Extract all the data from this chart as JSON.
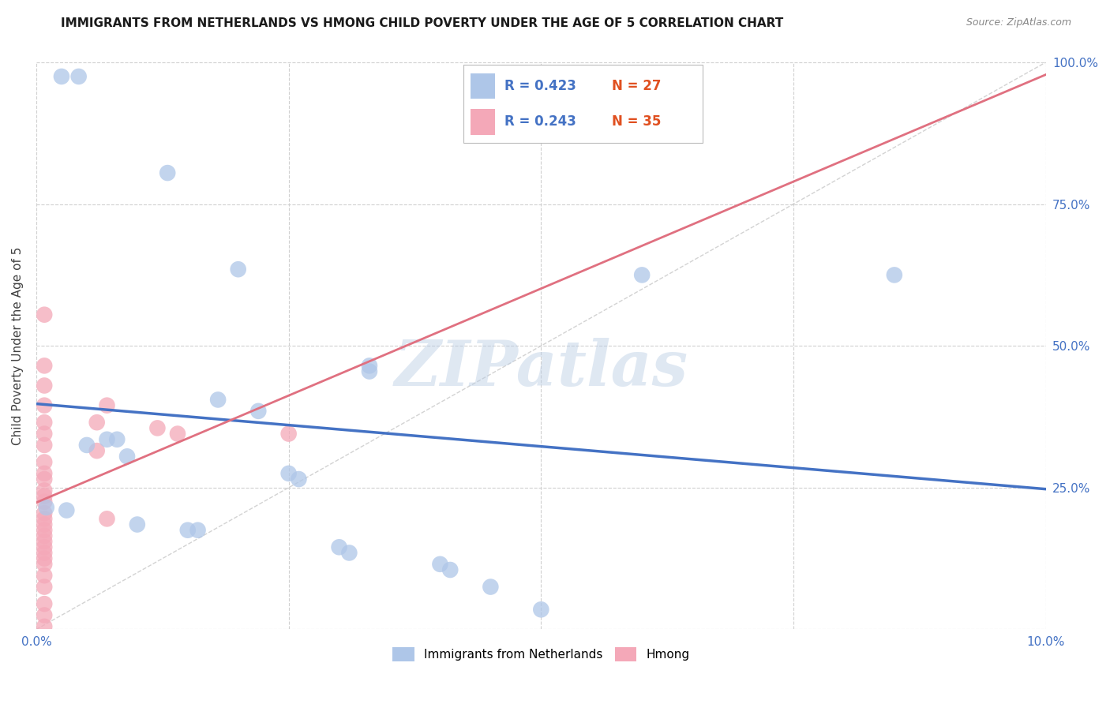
{
  "title": "IMMIGRANTS FROM NETHERLANDS VS HMONG CHILD POVERTY UNDER THE AGE OF 5 CORRELATION CHART",
  "source": "Source: ZipAtlas.com",
  "ylabel": "Child Poverty Under the Age of 5",
  "xlim": [
    0,
    0.1
  ],
  "ylim": [
    0,
    1.0
  ],
  "background_color": "#ffffff",
  "grid_color": "#d0d0d0",
  "watermark": "ZIPatlas",
  "blue_r": "R = 0.423",
  "blue_n": "N = 27",
  "pink_r": "R = 0.243",
  "pink_n": "N = 35",
  "label1": "Immigrants from Netherlands",
  "label2": "Hmong",
  "blue_scatter": [
    [
      0.0025,
      0.975
    ],
    [
      0.0042,
      0.975
    ],
    [
      0.013,
      0.805
    ],
    [
      0.02,
      0.635
    ],
    [
      0.033,
      0.455
    ],
    [
      0.06,
      0.625
    ],
    [
      0.085,
      0.625
    ],
    [
      0.018,
      0.405
    ],
    [
      0.022,
      0.385
    ],
    [
      0.005,
      0.325
    ],
    [
      0.007,
      0.335
    ],
    [
      0.009,
      0.305
    ],
    [
      0.025,
      0.275
    ],
    [
      0.026,
      0.265
    ],
    [
      0.001,
      0.215
    ],
    [
      0.003,
      0.21
    ],
    [
      0.008,
      0.335
    ],
    [
      0.01,
      0.185
    ],
    [
      0.015,
      0.175
    ],
    [
      0.016,
      0.175
    ],
    [
      0.03,
      0.145
    ],
    [
      0.031,
      0.135
    ],
    [
      0.033,
      0.465
    ],
    [
      0.04,
      0.115
    ],
    [
      0.041,
      0.105
    ],
    [
      0.045,
      0.075
    ],
    [
      0.05,
      0.035
    ]
  ],
  "pink_scatter": [
    [
      0.0008,
      0.555
    ],
    [
      0.0008,
      0.465
    ],
    [
      0.0008,
      0.43
    ],
    [
      0.0008,
      0.395
    ],
    [
      0.0008,
      0.365
    ],
    [
      0.0008,
      0.345
    ],
    [
      0.0008,
      0.325
    ],
    [
      0.0008,
      0.295
    ],
    [
      0.0008,
      0.275
    ],
    [
      0.0008,
      0.265
    ],
    [
      0.0008,
      0.245
    ],
    [
      0.0008,
      0.235
    ],
    [
      0.0008,
      0.225
    ],
    [
      0.0008,
      0.205
    ],
    [
      0.0008,
      0.195
    ],
    [
      0.0008,
      0.185
    ],
    [
      0.0008,
      0.175
    ],
    [
      0.0008,
      0.165
    ],
    [
      0.0008,
      0.155
    ],
    [
      0.0008,
      0.145
    ],
    [
      0.0008,
      0.135
    ],
    [
      0.0008,
      0.125
    ],
    [
      0.0008,
      0.115
    ],
    [
      0.0008,
      0.095
    ],
    [
      0.0008,
      0.075
    ],
    [
      0.0008,
      0.045
    ],
    [
      0.0008,
      0.025
    ],
    [
      0.006,
      0.365
    ],
    [
      0.006,
      0.315
    ],
    [
      0.007,
      0.395
    ],
    [
      0.007,
      0.195
    ],
    [
      0.012,
      0.355
    ],
    [
      0.014,
      0.345
    ],
    [
      0.025,
      0.345
    ],
    [
      0.0008,
      0.005
    ]
  ],
  "blue_line_color": "#4472c4",
  "pink_line_color": "#e07080",
  "scatter_blue_color": "#aec6e8",
  "scatter_pink_color": "#f4a8b8",
  "diagonal_color": "#c8c8c8",
  "title_fontsize": 11,
  "axis_color": "#404040",
  "tick_color": "#4472c4"
}
